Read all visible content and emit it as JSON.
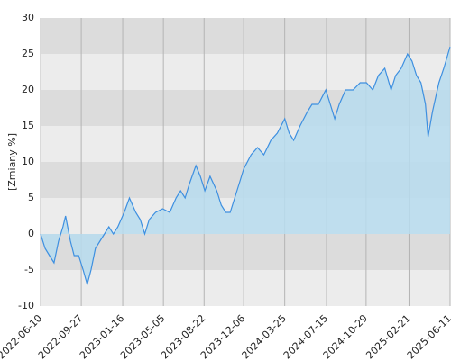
{
  "chart_data": {
    "type": "area",
    "y_label": "[Zmiany %]",
    "x": [
      "2022-06-10",
      "2022-06-22",
      "2022-07-04",
      "2022-07-16",
      "2022-07-28",
      "2022-08-09",
      "2022-08-16",
      "2022-08-29",
      "2022-09-08",
      "2022-09-20",
      "2022-10-02",
      "2022-10-13",
      "2022-10-23",
      "2022-11-04",
      "2022-11-16",
      "2022-11-28",
      "2022-12-10",
      "2022-12-22",
      "2023-01-03",
      "2023-01-20",
      "2023-02-03",
      "2023-02-20",
      "2023-03-04",
      "2023-03-16",
      "2023-03-28",
      "2023-04-14",
      "2023-05-03",
      "2023-05-22",
      "2023-06-08",
      "2023-06-20",
      "2023-07-02",
      "2023-07-14",
      "2023-07-31",
      "2023-08-12",
      "2023-08-24",
      "2023-09-07",
      "2023-09-25",
      "2023-10-07",
      "2023-10-19",
      "2023-10-31",
      "2023-11-12",
      "2023-11-24",
      "2023-12-06",
      "2023-12-26",
      "2024-01-12",
      "2024-01-29",
      "2024-02-17",
      "2024-03-05",
      "2024-03-25",
      "2024-04-06",
      "2024-04-18",
      "2024-05-05",
      "2024-05-25",
      "2024-06-06",
      "2024-06-23",
      "2024-07-13",
      "2024-07-25",
      "2024-08-06",
      "2024-08-18",
      "2024-09-04",
      "2024-09-24",
      "2024-10-13",
      "2024-10-30",
      "2024-11-16",
      "2024-12-01",
      "2024-12-18",
      "2025-01-04",
      "2025-01-16",
      "2025-01-31",
      "2025-02-17",
      "2025-03-01",
      "2025-03-13",
      "2025-03-25",
      "2025-04-06",
      "2025-04-13",
      "2025-04-25",
      "2025-05-12",
      "2025-05-25",
      "2025-06-11"
    ],
    "series": [
      {
        "name": "Zmiany",
        "color": "#3d8fe0",
        "fill": "#b7dcee",
        "values": [
          0,
          -2,
          -3,
          -4,
          -1,
          1,
          2.5,
          -1,
          -3,
          -3,
          -5,
          -7,
          -5,
          -2,
          -1,
          0,
          1,
          0,
          1,
          3,
          5,
          3,
          2,
          0,
          2,
          3,
          3.5,
          3,
          5,
          6,
          5,
          7,
          9.5,
          8,
          6,
          8,
          6,
          4,
          3,
          3,
          5,
          7,
          9,
          11,
          12,
          11,
          13,
          14,
          16,
          14,
          13,
          15,
          17,
          18,
          18,
          20,
          18,
          16,
          18,
          20,
          20,
          21,
          21,
          20,
          22,
          23,
          20,
          22,
          23,
          25,
          24,
          22,
          21,
          18,
          13.5,
          17,
          21,
          23,
          26
        ]
      }
    ],
    "xlim": [
      "2022-06-10",
      "2025-06-11"
    ],
    "xticks": [
      "2022-06-10",
      "2022-09-27",
      "2023-01-16",
      "2023-05-05",
      "2023-08-22",
      "2023-12-06",
      "2024-03-25",
      "2024-07-15",
      "2024-10-29",
      "2025-02-21",
      "2025-06-11"
    ],
    "ylim": [
      -10,
      30
    ],
    "yticks": [
      -10,
      -5,
      0,
      5,
      10,
      15,
      20,
      25,
      30
    ],
    "band_colors": [
      "#ececec",
      "#dcdcdc"
    ],
    "grid_color": "#b4b4b4"
  }
}
